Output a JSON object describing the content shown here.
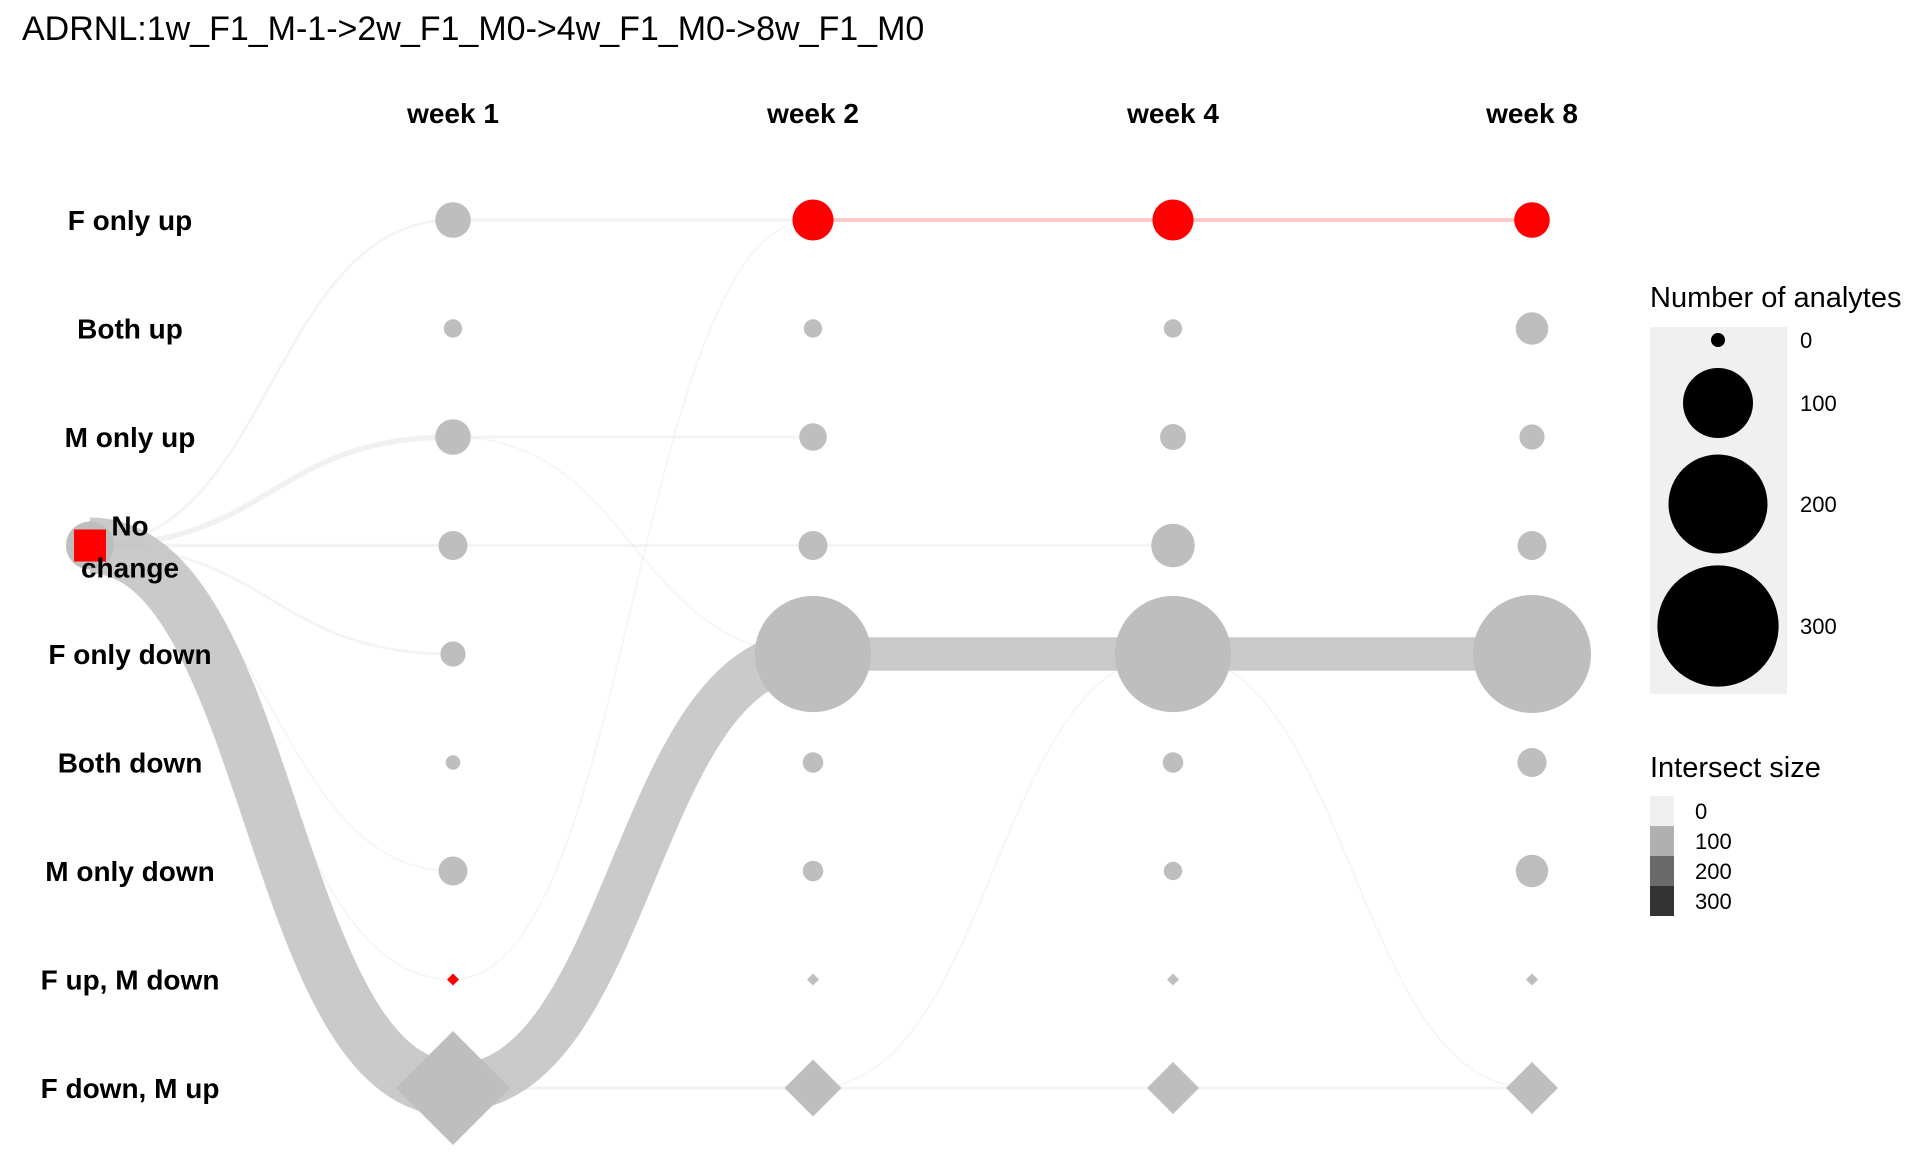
{
  "chart_data": {
    "type": "trajectory",
    "title": "ADRNL:1w_F1_M-1->2w_F1_M0->4w_F1_M0->8w_F1_M0",
    "columns": [
      "week 1",
      "week 2",
      "week 4",
      "week 8"
    ],
    "rows": [
      "F only up",
      "Both up",
      "M only up",
      "No change",
      "F only down",
      "Both down",
      "M only down",
      "F up, M down",
      "F down, M up"
    ],
    "baseline": {
      "row": "No change",
      "label": "No change",
      "size": 30,
      "highlight": true
    },
    "nodes": [
      [
        30,
        8,
        30,
        20,
        15,
        5,
        20,
        0,
        120
      ],
      [
        40,
        8,
        18,
        20,
        320,
        10,
        10,
        1,
        30
      ],
      [
        40,
        8,
        16,
        45,
        320,
        10,
        8,
        1,
        25
      ],
      [
        30,
        25,
        15,
        20,
        330,
        20,
        25,
        1,
        25
      ]
    ],
    "shapes": [
      "circle",
      "circle",
      "circle",
      "circle",
      "circle",
      "circle",
      "circle",
      "diamond",
      "diamond"
    ],
    "highlight_path": [
      "No change",
      "F up, M down",
      "F only up",
      "F only up",
      "F only up"
    ],
    "links": [
      {
        "from": [
          -1,
          "No change"
        ],
        "to": [
          0,
          "F down, M up"
        ],
        "value": 200
      },
      {
        "from": [
          0,
          "F down, M up"
        ],
        "to": [
          1,
          "F only down"
        ],
        "value": 170
      },
      {
        "from": [
          1,
          "F only down"
        ],
        "to": [
          2,
          "F only down"
        ],
        "value": 120
      },
      {
        "from": [
          2,
          "F only down"
        ],
        "to": [
          3,
          "F only down"
        ],
        "value": 120
      },
      {
        "from": [
          -1,
          "No change"
        ],
        "to": [
          0,
          "F only up"
        ],
        "value": 3
      },
      {
        "from": [
          -1,
          "No change"
        ],
        "to": [
          0,
          "M only up"
        ],
        "value": 6
      },
      {
        "from": [
          -1,
          "No change"
        ],
        "to": [
          0,
          "No change"
        ],
        "value": 4
      },
      {
        "from": [
          -1,
          "No change"
        ],
        "to": [
          0,
          "F only down"
        ],
        "value": 3
      },
      {
        "from": [
          -1,
          "No change"
        ],
        "to": [
          0,
          "M only down"
        ],
        "value": 2
      },
      {
        "from": [
          -1,
          "No change"
        ],
        "to": [
          0,
          "F up, M down"
        ],
        "value": 2
      },
      {
        "from": [
          0,
          "F only up"
        ],
        "to": [
          1,
          "F only up"
        ],
        "value": 4
      },
      {
        "from": [
          0,
          "M only up"
        ],
        "to": [
          1,
          "M only up"
        ],
        "value": 3
      },
      {
        "from": [
          0,
          "M only up"
        ],
        "to": [
          1,
          "F only down"
        ],
        "value": 2
      },
      {
        "from": [
          0,
          "No change"
        ],
        "to": [
          1,
          "No change"
        ],
        "value": 3
      },
      {
        "from": [
          0,
          "F up, M down"
        ],
        "to": [
          1,
          "F only up"
        ],
        "value": 2
      },
      {
        "from": [
          0,
          "F down, M up"
        ],
        "to": [
          1,
          "F down, M up"
        ],
        "value": 4
      },
      {
        "from": [
          1,
          "F only up"
        ],
        "to": [
          2,
          "F only up"
        ],
        "value": 6
      },
      {
        "from": [
          1,
          "No change"
        ],
        "to": [
          2,
          "No change"
        ],
        "value": 3
      },
      {
        "from": [
          1,
          "F down, M up"
        ],
        "to": [
          2,
          "F down, M up"
        ],
        "value": 3
      },
      {
        "from": [
          1,
          "F down, M up"
        ],
        "to": [
          2,
          "F only down"
        ],
        "value": 2
      },
      {
        "from": [
          2,
          "F only up"
        ],
        "to": [
          3,
          "F only up"
        ],
        "value": 5
      },
      {
        "from": [
          2,
          "F down, M up"
        ],
        "to": [
          3,
          "F down, M up"
        ],
        "value": 3
      },
      {
        "from": [
          2,
          "F only down"
        ],
        "to": [
          3,
          "F down, M up"
        ],
        "value": 2
      }
    ],
    "legend_size": {
      "title": "Number of analytes",
      "breaks": [
        0,
        100,
        200,
        300
      ]
    },
    "legend_intersect": {
      "title": "Intersect size",
      "breaks": [
        0,
        100,
        200,
        300
      ]
    },
    "colors": {
      "node": "#bebebe",
      "highlight": "#ff0000",
      "link": "#c4c4c4",
      "legend_panel": "#f0f0f0",
      "legend_mark": "#000000"
    }
  }
}
